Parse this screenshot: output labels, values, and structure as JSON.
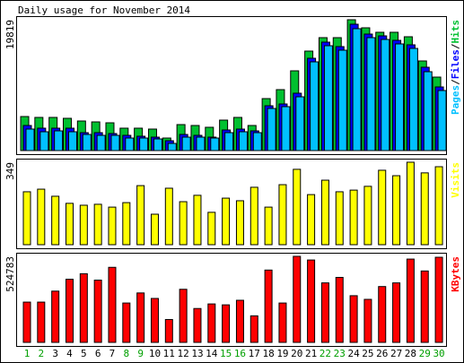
{
  "title": "Daily usage for November 2014",
  "chart_data": [
    {
      "type": "bar",
      "ylim": [
        0,
        19819
      ],
      "yticks": [
        19819
      ],
      "separator": "/",
      "series": [
        {
          "name": "Pages",
          "color": "#00c0ff",
          "values": [
            3258,
            2851,
            2986,
            2851,
            2443,
            2308,
            2308,
            1900,
            1900,
            1764,
            1086,
            2036,
            2036,
            1900,
            2715,
            2851,
            2715,
            6380,
            6651,
            8145,
            13439,
            15882,
            15204,
            18461,
            17104,
            16832,
            16154,
            15475,
            11945,
            9095
          ]
        },
        {
          "name": "Files",
          "color": "#0000ff",
          "values": [
            3801,
            3394,
            3394,
            3394,
            2715,
            2715,
            2580,
            2308,
            2172,
            2036,
            1493,
            2443,
            2308,
            2036,
            3122,
            3258,
            2986,
            6787,
            7059,
            8688,
            13982,
            16425,
            15747,
            19140,
            17647,
            17375,
            16697,
            16018,
            12624,
            9638
          ]
        },
        {
          "name": "Hits",
          "color": "#00c030",
          "values": [
            5157,
            5023,
            5023,
            4887,
            4480,
            4344,
            4208,
            3394,
            3394,
            3258,
            1900,
            3937,
            3801,
            3529,
            4615,
            5023,
            3801,
            7873,
            9231,
            12081,
            15068,
            17104,
            17104,
            19819,
            18597,
            17918,
            17918,
            17240,
            13575,
            11131
          ]
        }
      ]
    },
    {
      "type": "bar",
      "ylim": [
        0,
        349
      ],
      "yticks": [
        349
      ],
      "series": [
        {
          "name": "Visits",
          "color": "#ffff00",
          "values": [
            224,
            235,
            205,
            175,
            167,
            171,
            159,
            178,
            250,
            129,
            239,
            182,
            209,
            137,
            197,
            186,
            243,
            159,
            254,
            319,
            212,
            273,
            224,
            231,
            247,
            315,
            292,
            349,
            304,
            330
          ]
        }
      ]
    },
    {
      "type": "bar",
      "ylim": [
        0,
        524783
      ],
      "yticks": [
        524783
      ],
      "categories": [
        "1",
        "2",
        "3",
        "4",
        "5",
        "6",
        "7",
        "8",
        "9",
        "10",
        "11",
        "12",
        "13",
        "14",
        "15",
        "16",
        "17",
        "18",
        "19",
        "20",
        "21",
        "22",
        "23",
        "24",
        "25",
        "26",
        "27",
        "28",
        "29",
        "30"
      ],
      "category_colors": [
        "#00a000",
        "#00a000",
        "#000000",
        "#000000",
        "#000000",
        "#000000",
        "#000000",
        "#00a000",
        "#00a000",
        "#000000",
        "#000000",
        "#000000",
        "#000000",
        "#000000",
        "#00a000",
        "#00a000",
        "#000000",
        "#000000",
        "#000000",
        "#000000",
        "#000000",
        "#00a000",
        "#00a000",
        "#000000",
        "#000000",
        "#000000",
        "#000000",
        "#000000",
        "#00a000",
        "#00a000"
      ],
      "series": [
        {
          "name": "KBytes",
          "color": "#ff0000",
          "values": [
            245652,
            245652,
            312648,
            385227,
            418725,
            379644,
            457806,
            240069,
            301482,
            267984,
            139575,
            323814,
            206571,
            234486,
            228903,
            256818,
            161907,
            441057,
            240069,
            524783,
            502470,
            362895,
            396393,
            284733,
            262401,
            340563,
            362895,
            508053,
            435474,
            519219
          ]
        }
      ]
    }
  ]
}
